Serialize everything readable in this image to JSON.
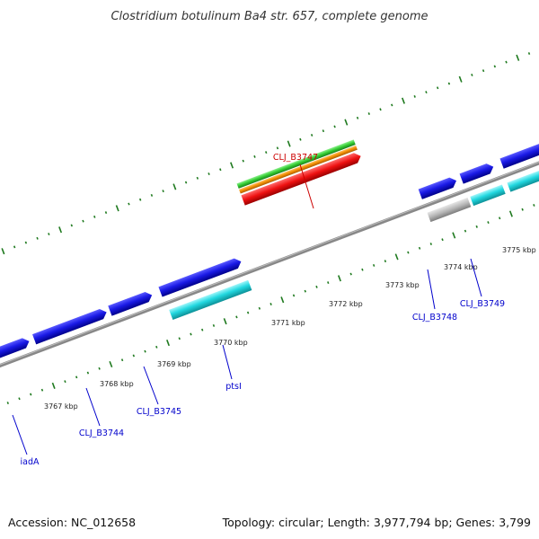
{
  "title": "Clostridium botulinum Ba4 str. 657, complete genome",
  "footer": {
    "accession": "Accession: NC_012658",
    "summary": "Topology: circular; Length: 3,977,794 bp; Genes: 3,799"
  },
  "kbp_labels": [
    "3767 kbp",
    "3768 kbp",
    "3769 kbp",
    "3770 kbp",
    "3771 kbp",
    "3772 kbp",
    "3773 kbp",
    "3774 kbp",
    "3775 kbp"
  ],
  "gene_labels": [
    {
      "id": "iadA",
      "text": "iadA",
      "color": "#0000cc"
    },
    {
      "id": "clj-b3744",
      "text": "CLJ_B3744",
      "color": "#0000cc"
    },
    {
      "id": "clj-b3745",
      "text": "CLJ_B3745",
      "color": "#0000cc"
    },
    {
      "id": "ptsi",
      "text": "ptsI",
      "color": "#0000cc"
    },
    {
      "id": "clj-b3747",
      "text": "CLJ_B3747",
      "color": "#cc0000"
    },
    {
      "id": "clj-b3748",
      "text": "CLJ_B3748",
      "color": "#0000cc"
    },
    {
      "id": "clj-b3749",
      "text": "CLJ_B3749",
      "color": "#0000cc"
    }
  ],
  "colors": {
    "cds_blue": "#1a1ae6",
    "cds_cyan": "#22d8e0",
    "gene_grey": "#b8b8b8",
    "rna_red": "#ee1111",
    "rna_orange": "#f08c00",
    "rna_green": "#33cc33",
    "backbone": "#888888",
    "tick_green": "#1f7a1f"
  }
}
